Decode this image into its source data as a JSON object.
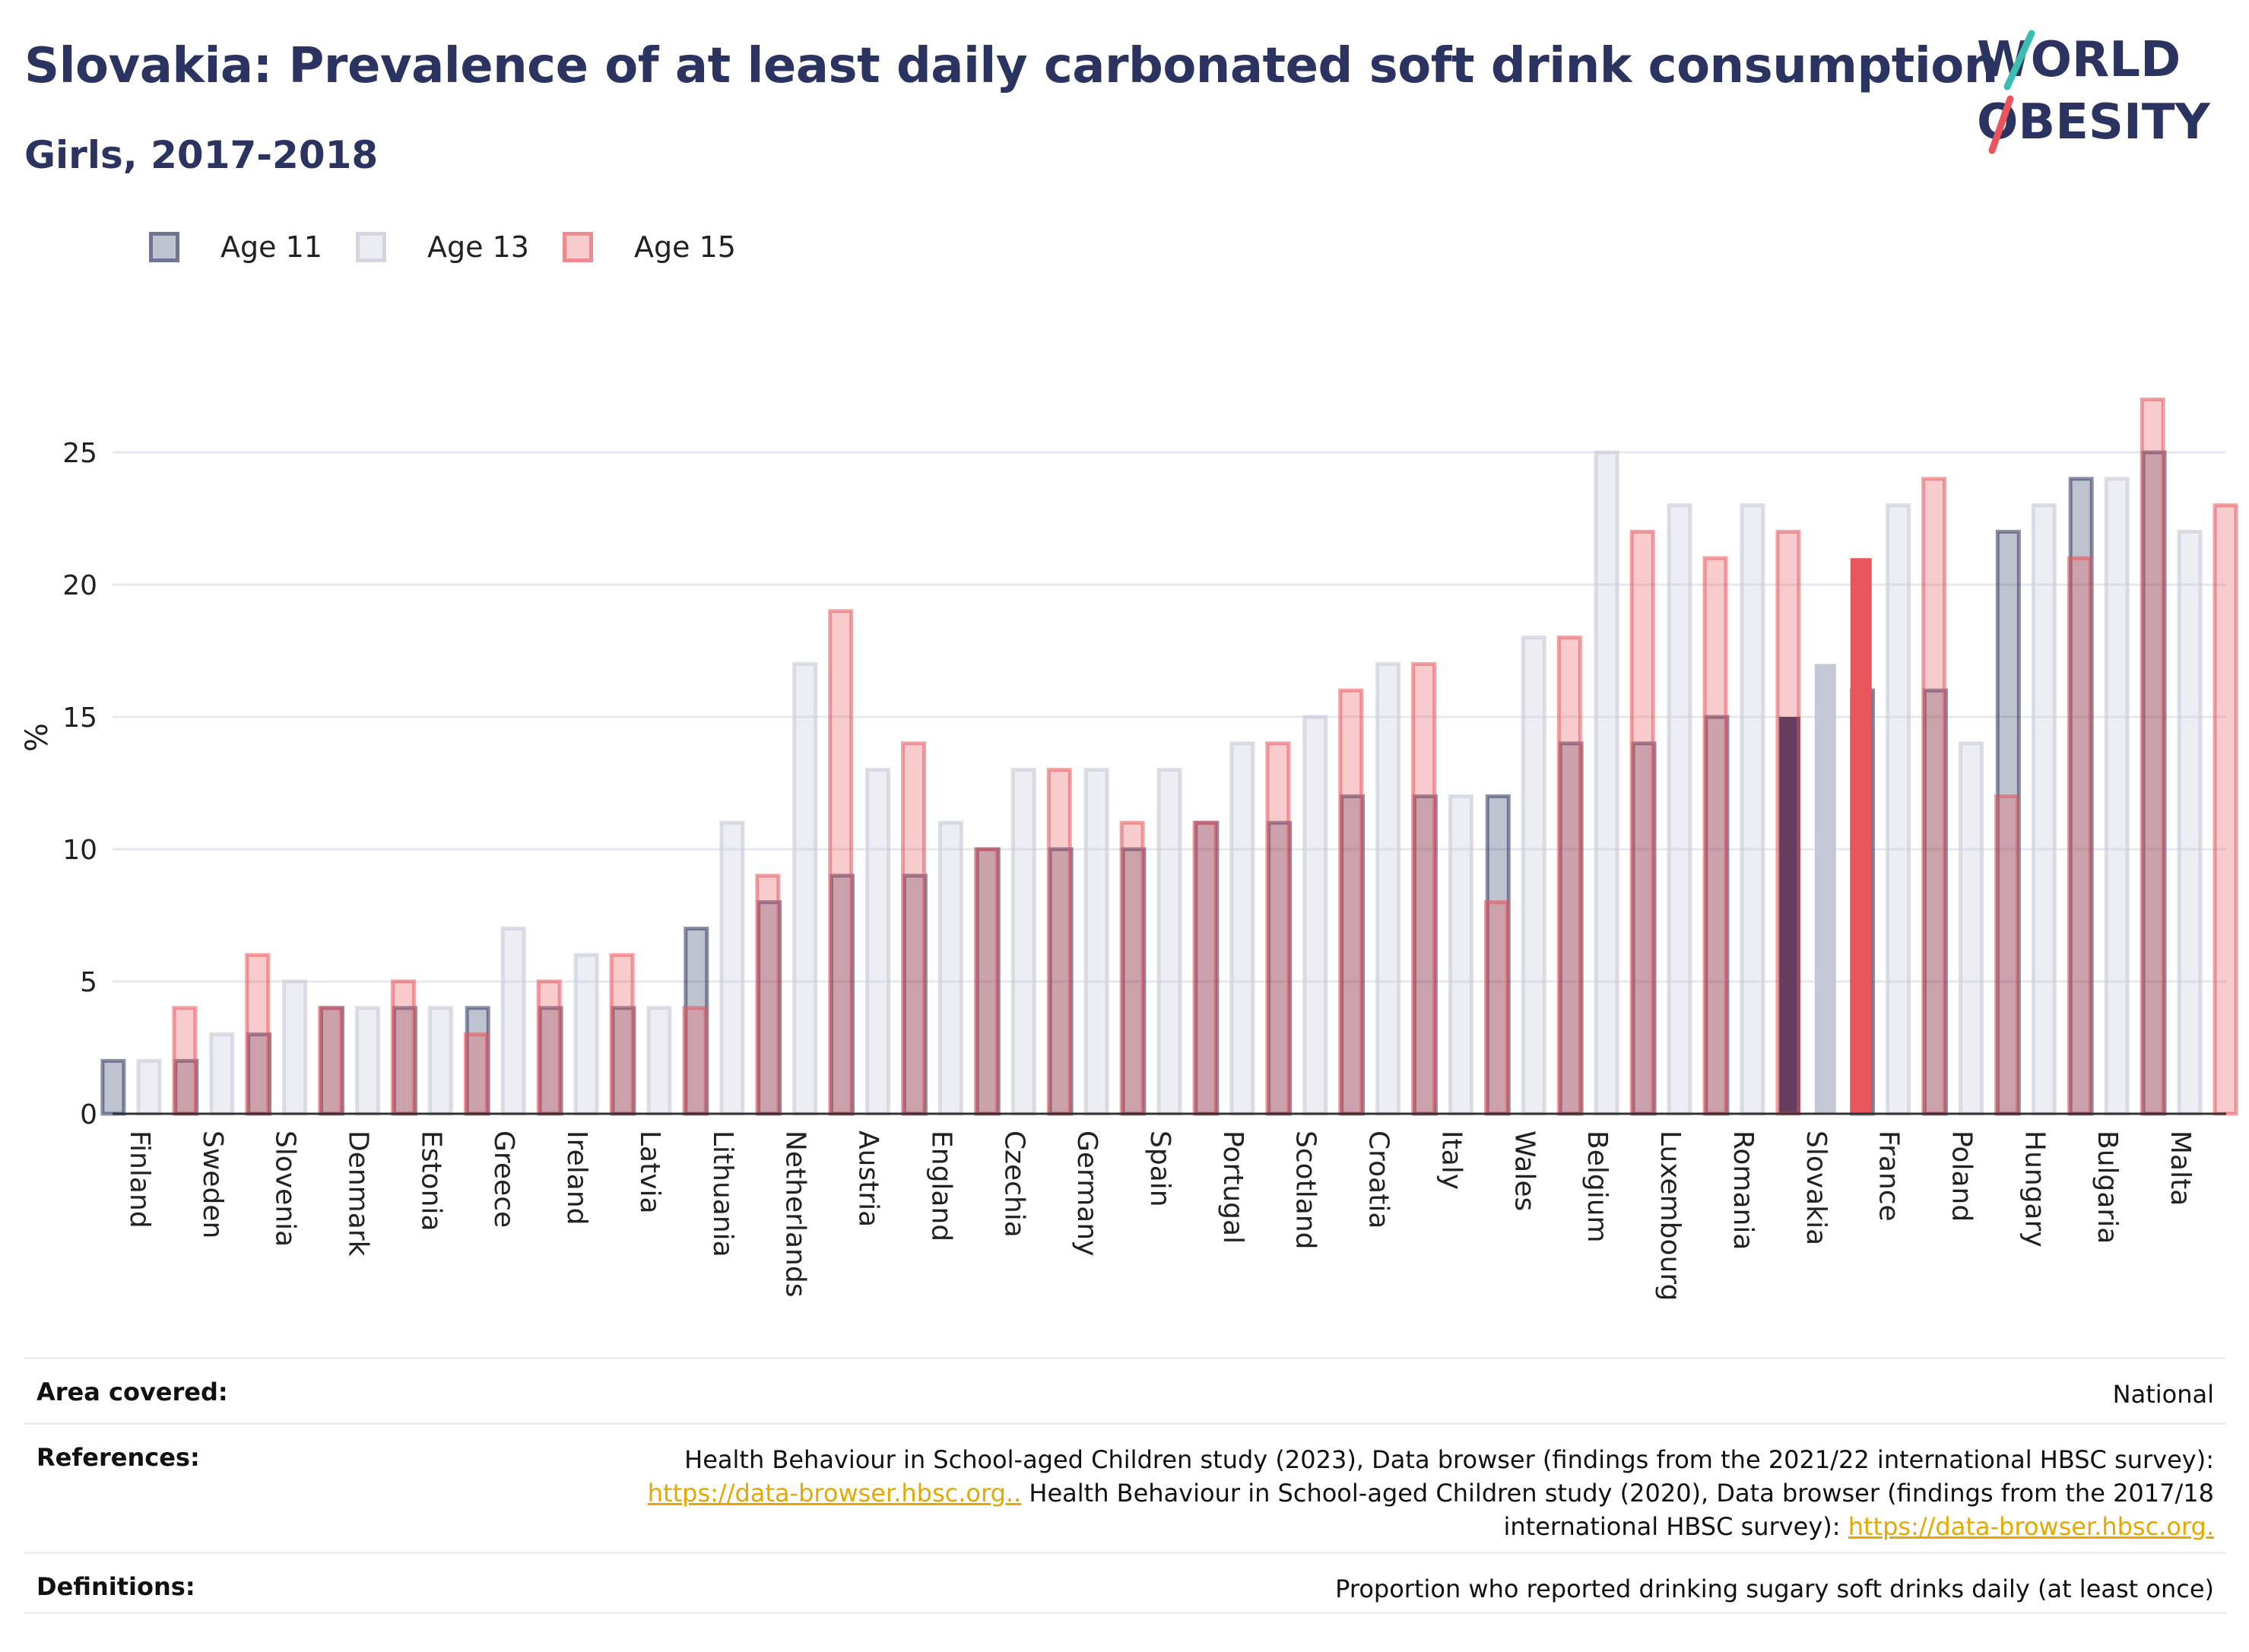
{
  "header": {
    "title": "Slovakia: Prevalence of at least daily carbonated soft drink consumption",
    "subtitle": "Girls, 2017-2018"
  },
  "logo": {
    "line1": "WORLD",
    "line2": "OBESITY"
  },
  "colors": {
    "age11": "#2b3461",
    "age13": "#c9ccda",
    "age15": "#e8565b",
    "grid": "#e6e8f0",
    "title": "#2b3461",
    "logo_teal": "#3dbdb2",
    "logo_red": "#e8565b",
    "link": "#e6a700"
  },
  "chart_data": {
    "type": "bar",
    "title": "Slovakia: Prevalence of at least daily carbonated soft drink consumption",
    "subtitle": "Girls, 2017-2018",
    "ylabel": "%",
    "xlabel": "",
    "ylim": [
      0,
      28
    ],
    "yticks": [
      0,
      5,
      10,
      15,
      20,
      25
    ],
    "grid": true,
    "legend_position": "top-left",
    "highlight": "Slovakia",
    "categories": [
      "Finland",
      "Sweden",
      "Slovenia",
      "Denmark",
      "Estonia",
      "Greece",
      "Ireland",
      "Latvia",
      "Lithuania",
      "Netherlands",
      "Austria",
      "England",
      "Czechia",
      "Germany",
      "Spain",
      "Portugal",
      "Scotland",
      "Croatia",
      "Italy",
      "Wales",
      "Belgium",
      "Luxembourg",
      "Romania",
      "Slovakia",
      "France",
      "Poland",
      "Hungary",
      "Bulgaria",
      "Malta"
    ],
    "series": [
      {
        "name": "Age 11",
        "values": [
          2,
          2,
          3,
          4,
          4,
          4,
          4,
          4,
          7,
          8,
          9,
          9,
          10,
          10,
          10,
          11,
          11,
          12,
          12,
          12,
          14,
          14,
          15,
          15,
          16,
          16,
          22,
          24,
          25
        ]
      },
      {
        "name": "Age 13",
        "values": [
          2,
          3,
          5,
          4,
          4,
          7,
          6,
          4,
          11,
          17,
          13,
          11,
          13,
          13,
          13,
          14,
          15,
          17,
          12,
          18,
          25,
          23,
          23,
          17,
          23,
          14,
          23,
          24,
          22
        ]
      },
      {
        "name": "Age 15",
        "values": [
          4,
          6,
          4,
          5,
          3,
          5,
          6,
          4,
          9,
          19,
          14,
          10,
          13,
          11,
          11,
          14,
          16,
          17,
          8,
          18,
          22,
          21,
          22,
          21,
          24,
          12,
          21,
          27,
          23
        ]
      }
    ]
  },
  "footer": {
    "area_label": "Area covered:",
    "area_value": "National",
    "references_label": "References:",
    "ref_part1": "Health Behaviour in School-aged Children study (2023), Data browser (findings from the 2021/22 international HBSC survey):",
    "ref_link1": "https://data-browser.hbsc.org..",
    "ref_part2": " Health Behaviour in School-aged Children study (2020), Data browser (findings from the 2017/18",
    "ref_part3": "international HBSC survey): ",
    "ref_link2": "https://data-browser.hbsc.org.",
    "definitions_label": "Definitions:",
    "definitions_value": "Proportion who reported drinking sugary soft drinks daily (at least once)"
  }
}
